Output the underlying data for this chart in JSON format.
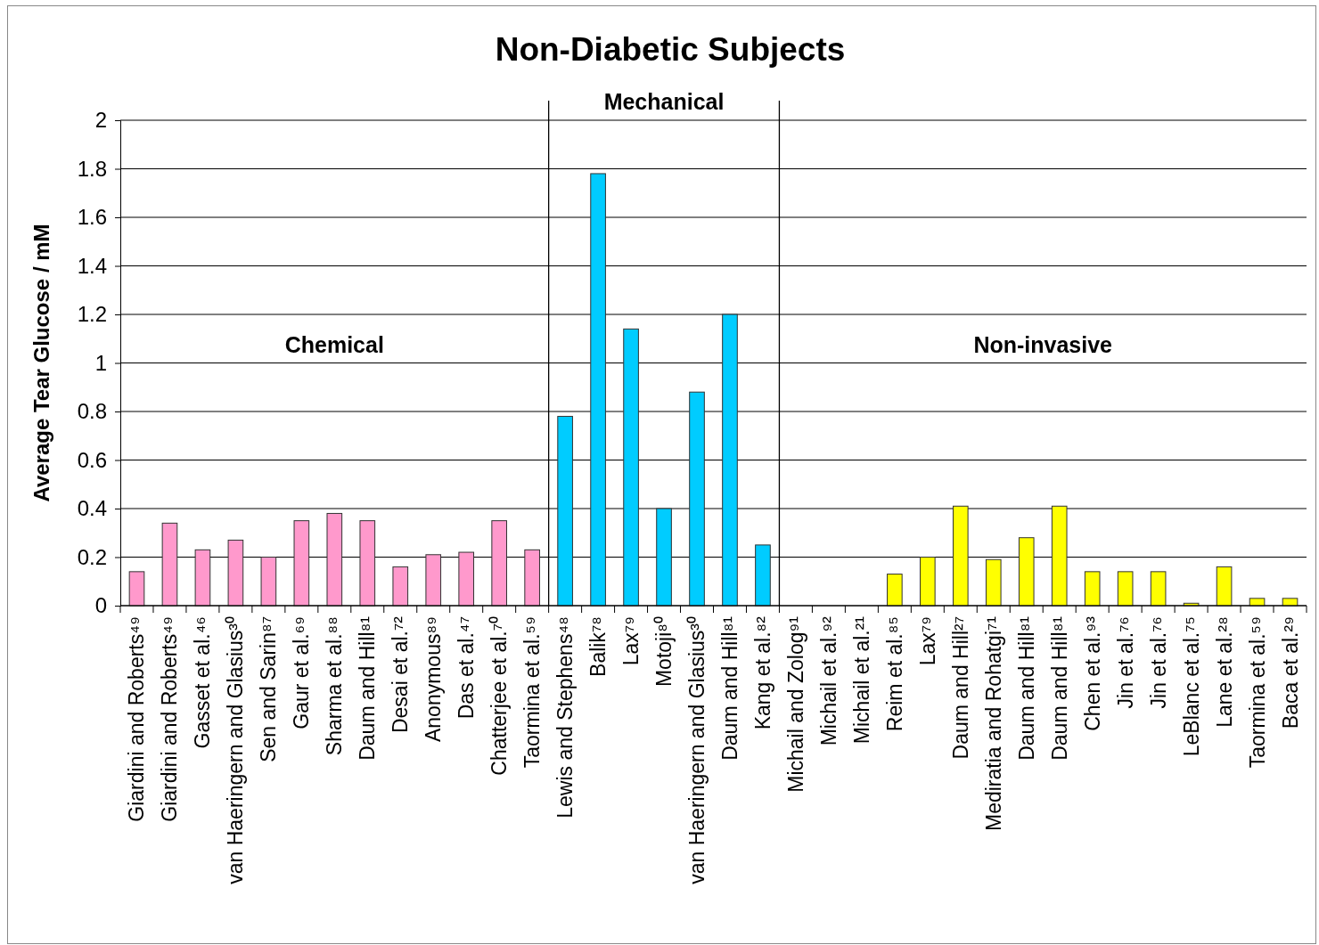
{
  "chart_data": {
    "type": "bar",
    "title": "Non-Diabetic Subjects",
    "ylabel": "Average Tear Glucose / mM",
    "categories": [
      "Giardini and Roberts⁴⁹",
      "Giardini and Roberts⁴⁹",
      "Gasset et al.⁴⁶",
      "van Haeringern and Glasius³⁰",
      "Sen and Sarin⁸⁷",
      "Gaur et al.⁶⁹",
      "Sharma et al.⁸⁸",
      "Daum and Hill⁸¹",
      "Desai et al.⁷²",
      "Anonymous⁸⁹",
      "Das et al.⁴⁷",
      "Chatterjee et al.⁷⁰",
      "Taormina et al.⁵⁹",
      "Lewis and Stephens⁴⁸",
      "Balik⁷⁸",
      "Lax⁷⁹",
      "Motoji⁸⁰",
      "van Haeringern and Glasius³⁰",
      "Daum and Hill⁸¹",
      "Kang et al.⁸²",
      "Michail and Zolog⁹¹",
      "Michail et al.⁹²",
      "Michail et al.²¹",
      "Reim et al.⁸⁵",
      "Lax⁷⁹",
      "Daum and Hill²⁷",
      "Mediratia and Rohatgi⁷¹",
      "Daum and Hill⁸¹",
      "Daum and Hill⁸¹",
      "Chen et al.⁹³",
      "Jin et al.⁷⁶",
      "Jin et al.⁷⁶",
      "LeBlanc et al.⁷⁵",
      "Lane et al.²⁸",
      "Taormina et al.⁵⁹",
      "Baca et al.²⁹"
    ],
    "values": [
      0.14,
      0.34,
      0.23,
      0.27,
      0.2,
      0.35,
      0.38,
      0.35,
      0.16,
      0.21,
      0.22,
      0.35,
      0.23,
      0.78,
      1.78,
      1.14,
      0.4,
      0.88,
      1.2,
      0.25,
      0,
      0,
      0,
      0.13,
      0.2,
      0.41,
      0.19,
      0.28,
      0.41,
      0.14,
      0.14,
      0.14,
      0.01,
      0.16,
      0.03,
      0.03
    ],
    "colors": [
      "#ff99cc",
      "#ff99cc",
      "#ff99cc",
      "#ff99cc",
      "#ff99cc",
      "#ff99cc",
      "#ff99cc",
      "#ff99cc",
      "#ff99cc",
      "#ff99cc",
      "#ff99cc",
      "#ff99cc",
      "#ff99cc",
      "#00ccff",
      "#00ccff",
      "#00ccff",
      "#00ccff",
      "#00ccff",
      "#00ccff",
      "#00ccff",
      "#ffff00",
      "#ffff00",
      "#ffff00",
      "#ffff00",
      "#ffff00",
      "#ffff00",
      "#ffff00",
      "#ffff00",
      "#ffff00",
      "#ffff00",
      "#ffff00",
      "#ffff00",
      "#ffff00",
      "#ffff00",
      "#ffff00",
      "#ffff00"
    ],
    "annotations": [
      "Chemical",
      "Mechanical",
      "Non-invasive"
    ],
    "ylim": [
      0,
      2
    ],
    "yticks": [
      0,
      0.2,
      0.4,
      0.6,
      0.8,
      1,
      1.2,
      1.4,
      1.6,
      1.8,
      2
    ],
    "grid": "y"
  }
}
